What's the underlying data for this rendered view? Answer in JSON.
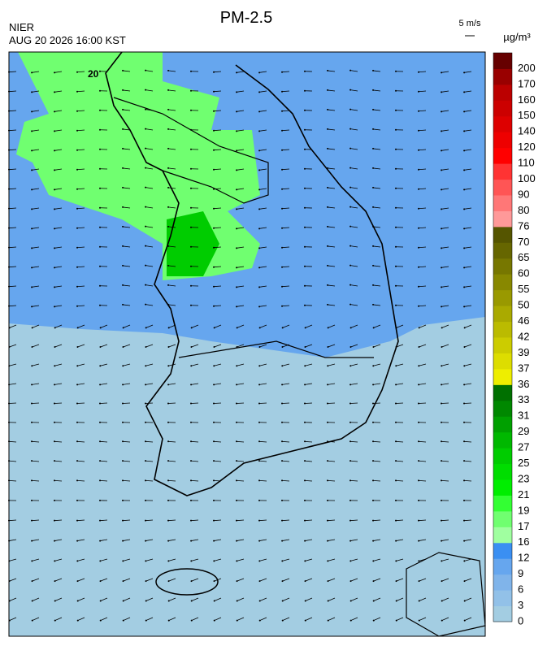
{
  "header": {
    "title": "PM-2.5",
    "agency": "NIER",
    "datetime": "AUG 20 2026 16:00 KST",
    "wind_scale": "5 m/s",
    "unit": "µg/m³"
  },
  "map": {
    "contour_label": "20"
  },
  "colorbar": {
    "ticks": [
      0,
      3,
      6,
      9,
      12,
      16,
      17,
      19,
      21,
      23,
      25,
      27,
      29,
      31,
      33,
      36,
      37,
      39,
      42,
      46,
      50,
      55,
      60,
      65,
      70,
      76,
      80,
      90,
      100,
      110,
      120,
      140,
      150,
      160,
      170,
      200
    ],
    "colors": [
      "#a3cde2",
      "#92c1e8",
      "#80b4ea",
      "#66a6ee",
      "#3a8ff2",
      "#a0ffa0",
      "#70ff70",
      "#33ff33",
      "#00ee00",
      "#00dd00",
      "#00cc00",
      "#00b800",
      "#00a000",
      "#008800",
      "#007000",
      "#eeee00",
      "#dddd00",
      "#cccc00",
      "#bbbb00",
      "#aaaa00",
      "#999900",
      "#888800",
      "#777700",
      "#666600",
      "#555500",
      "#ff9999",
      "#ff7777",
      "#ff5555",
      "#ff3333",
      "#ff0000",
      "#ee0000",
      "#dd0000",
      "#cc0000",
      "#bb0000",
      "#990000",
      "#660000"
    ]
  }
}
